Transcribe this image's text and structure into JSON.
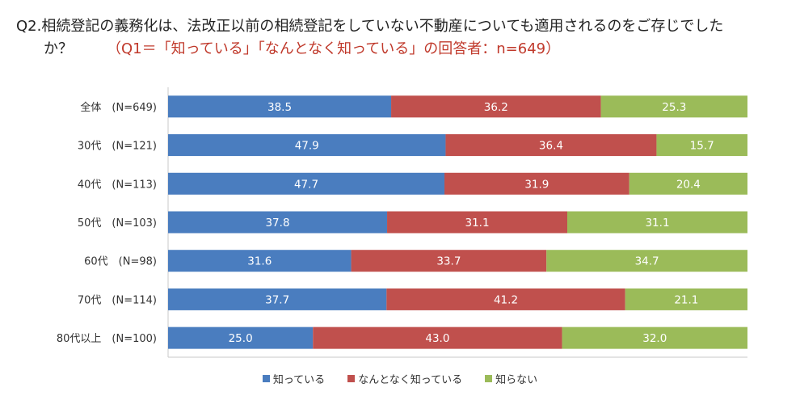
{
  "title": {
    "line1": "Q2.相続登記の義務化は、法改正以前の相続登記をしていない不動産についても適用されるのをご存じでした",
    "line2": "か？",
    "subtitle": "（Q1＝「知っている」「なんとなく知っている」の回答者：n=649）"
  },
  "chart_data": {
    "type": "bar",
    "orientation": "horizontal",
    "stacked": true,
    "percent_stacked": true,
    "categories": [
      "全体　(N=649)",
      "30代　(N=121)",
      "40代　(N=113)",
      "50代　(N=103)",
      "60代　(N=98)",
      "70代　(N=114)",
      "80代以上　(N=100)"
    ],
    "series": [
      {
        "name": "知っている",
        "color": "#4a7dbf",
        "values": [
          38.5,
          47.9,
          47.7,
          37.8,
          31.6,
          37.7,
          25.0
        ],
        "labels": [
          "38.5",
          "47.9",
          "47.7",
          "37.8",
          "31.6",
          "37.7",
          "25.0"
        ]
      },
      {
        "name": "なんとなく知っている",
        "color": "#c0504d",
        "values": [
          36.2,
          36.4,
          31.9,
          31.1,
          33.7,
          41.2,
          43.0
        ],
        "labels": [
          "36.2",
          "36.4",
          "31.9",
          "31.1",
          "33.7",
          "41.2",
          "43.0"
        ]
      },
      {
        "name": "知らない",
        "color": "#9bbb59",
        "values": [
          25.3,
          15.7,
          20.4,
          31.1,
          34.7,
          21.1,
          32.0
        ],
        "labels": [
          "25.3",
          "15.7",
          "20.4",
          "31.1",
          "34.7",
          "21.1",
          "32.0"
        ]
      }
    ],
    "xlim": [
      0,
      100
    ],
    "legend_position": "bottom"
  }
}
